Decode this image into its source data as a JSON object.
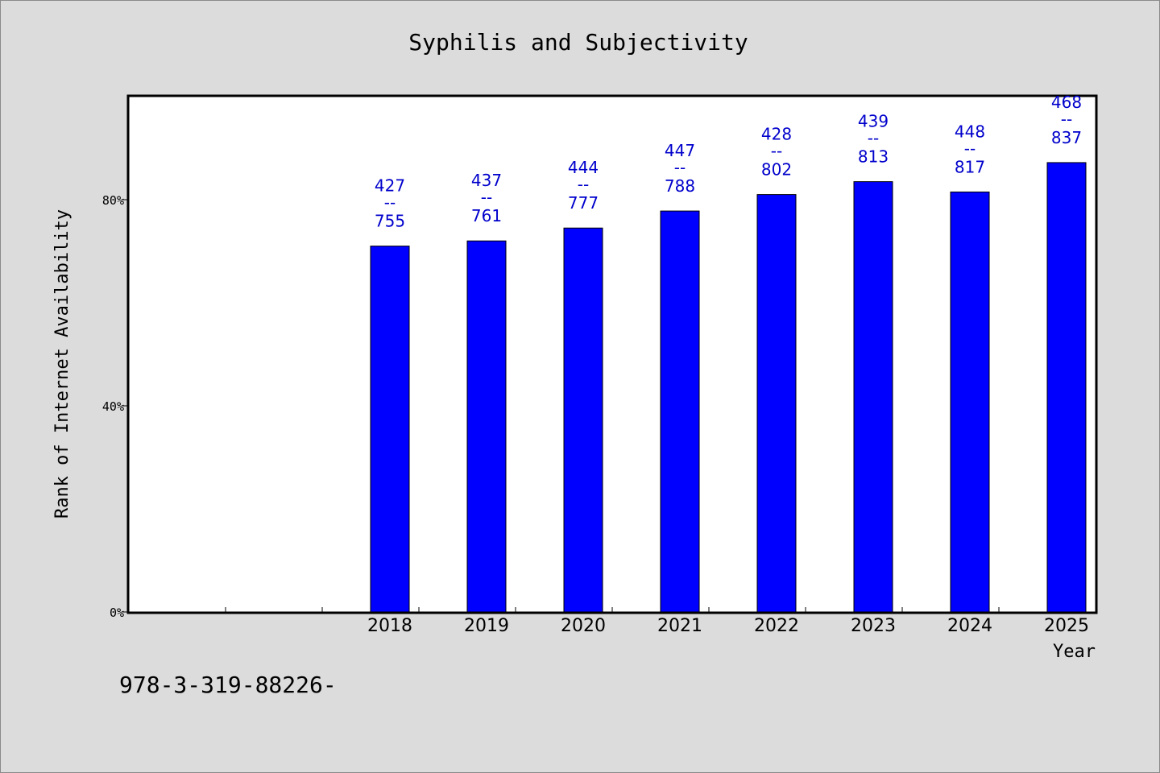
{
  "chart_data": {
    "type": "bar",
    "title": "Syphilis and Subjectivity",
    "xlabel": "Year",
    "ylabel": "Rank of Internet Availability",
    "categories": [
      "",
      "",
      "2018",
      "2019",
      "2020",
      "2021",
      "2022",
      "2023",
      "2024",
      "2025"
    ],
    "values": [
      null,
      null,
      0.71,
      0.72,
      0.745,
      0.778,
      0.81,
      0.835,
      0.815,
      0.872
    ],
    "labels_top": [
      "",
      "",
      "427",
      "437",
      "444",
      "447",
      "428",
      "439",
      "448",
      "468"
    ],
    "labels_sep": "--",
    "labels_bottom": [
      "",
      "",
      "755",
      "761",
      "777",
      "788",
      "802",
      "813",
      "817",
      "837"
    ],
    "ylim": [
      0,
      1.0
    ],
    "yticks": [
      {
        "value": 0,
        "label": "0%"
      },
      {
        "value": 0.4,
        "label": "40%"
      },
      {
        "value": 0.8,
        "label": "80%"
      }
    ],
    "grid": false,
    "bar_color": "#0000ff",
    "label_color": "#0000cc"
  },
  "footer": {
    "code": "978-3-319-88226-"
  }
}
